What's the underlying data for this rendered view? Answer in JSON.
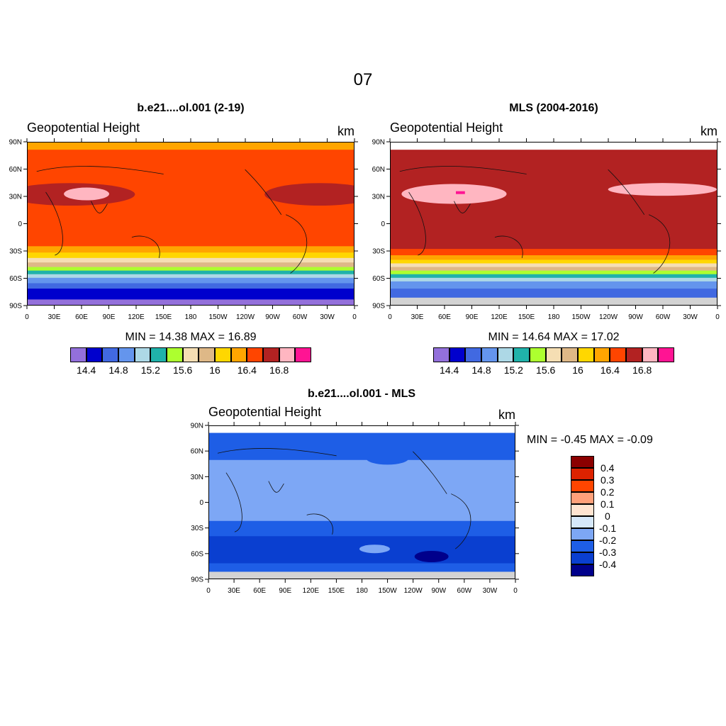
{
  "page": {
    "title": "07"
  },
  "panels": [
    {
      "title": "b.e21....ol.001 (2-19)",
      "variable": "Geopotential Height",
      "units": "km",
      "min_max": "MIN =  14.38  MAX =  16.89",
      "zonal_bands": [
        {
          "lat_top": 90,
          "lat_bottom": 82,
          "color": "#ffa500"
        },
        {
          "lat_top": 82,
          "lat_bottom": 30,
          "color": "#ff4500"
        },
        {
          "lat_top": 30,
          "lat_bottom": -25,
          "color": "#ff4500"
        },
        {
          "lat_top": -25,
          "lat_bottom": -32,
          "color": "#ffa500"
        },
        {
          "lat_top": -32,
          "lat_bottom": -38,
          "color": "#ffd700"
        },
        {
          "lat_top": -38,
          "lat_bottom": -43,
          "color": "#f5deb3"
        },
        {
          "lat_top": -43,
          "lat_bottom": -48,
          "color": "#deb887"
        },
        {
          "lat_top": -48,
          "lat_bottom": -52,
          "color": "#adff2f"
        },
        {
          "lat_top": -52,
          "lat_bottom": -56,
          "color": "#20b2aa"
        },
        {
          "lat_top": -56,
          "lat_bottom": -60,
          "color": "#add8e6"
        },
        {
          "lat_top": -60,
          "lat_bottom": -66,
          "color": "#6495ed"
        },
        {
          "lat_top": -66,
          "lat_bottom": -72,
          "color": "#4169e1"
        },
        {
          "lat_top": -72,
          "lat_bottom": -84,
          "color": "#0000cd"
        },
        {
          "lat_top": -84,
          "lat_bottom": -90,
          "color": "#9370db"
        }
      ]
    },
    {
      "title": "MLS (2004-2016)",
      "variable": "Geopotential Height",
      "units": "km",
      "min_max": "MIN =  14.64  MAX =  17.02",
      "zonal_bands": [
        {
          "lat_top": 90,
          "lat_bottom": 82,
          "color": "#ffffff"
        },
        {
          "lat_top": 82,
          "lat_bottom": -28,
          "color": "#b22222"
        },
        {
          "lat_top": -28,
          "lat_bottom": -35,
          "color": "#ff4500"
        },
        {
          "lat_top": -35,
          "lat_bottom": -40,
          "color": "#ffa500"
        },
        {
          "lat_top": -40,
          "lat_bottom": -44,
          "color": "#ffd700"
        },
        {
          "lat_top": -44,
          "lat_bottom": -48,
          "color": "#f5deb3"
        },
        {
          "lat_top": -48,
          "lat_bottom": -52,
          "color": "#deb887"
        },
        {
          "lat_top": -52,
          "lat_bottom": -56,
          "color": "#adff2f"
        },
        {
          "lat_top": -56,
          "lat_bottom": -60,
          "color": "#20b2aa"
        },
        {
          "lat_top": -60,
          "lat_bottom": -64,
          "color": "#add8e6"
        },
        {
          "lat_top": -64,
          "lat_bottom": -72,
          "color": "#6495ed"
        },
        {
          "lat_top": -72,
          "lat_bottom": -82,
          "color": "#4169e1"
        },
        {
          "lat_top": -82,
          "lat_bottom": -90,
          "color": "#d3d3d3"
        }
      ]
    },
    {
      "title": "b.e21....ol.001 - MLS",
      "variable": "Geopotential Height",
      "units": "km",
      "min_max": "MIN =  -0.45  MAX =  -0.09",
      "zonal_bands": [
        {
          "lat_top": 90,
          "lat_bottom": 82,
          "color": "#ffffff"
        },
        {
          "lat_top": 82,
          "lat_bottom": 50,
          "color": "#1e5ee6"
        },
        {
          "lat_top": 50,
          "lat_bottom": -22,
          "color": "#7da7f5"
        },
        {
          "lat_top": -22,
          "lat_bottom": -40,
          "color": "#1e5ee6"
        },
        {
          "lat_top": -40,
          "lat_bottom": -72,
          "color": "#0a3fd0"
        },
        {
          "lat_top": -72,
          "lat_bottom": -82,
          "color": "#1e5ee6"
        },
        {
          "lat_top": -82,
          "lat_bottom": -90,
          "color": "#d3d3d3"
        }
      ]
    }
  ],
  "axes": {
    "lat_ticks": [
      "90N",
      "60N",
      "30N",
      "0",
      "30S",
      "60S",
      "90S"
    ],
    "lon_ticks": [
      "0",
      "30E",
      "60E",
      "90E",
      "120E",
      "150E",
      "180",
      "150W",
      "120W",
      "90W",
      "60W",
      "30W",
      "0"
    ]
  },
  "colorbar_abs": {
    "colors": [
      "#9370db",
      "#0000cd",
      "#4169e1",
      "#6495ed",
      "#add8e6",
      "#20b2aa",
      "#adff2f",
      "#f5deb3",
      "#deb887",
      "#ffd700",
      "#ffa500",
      "#ff4500",
      "#b22222",
      "#ffb6c1",
      "#ff1493"
    ],
    "labels": [
      "14.4",
      "14.8",
      "15.2",
      "15.6",
      "16",
      "16.4",
      "16.8"
    ]
  },
  "colorbar_diff": {
    "colors": [
      "#8b0000",
      "#dd2200",
      "#ff4500",
      "#ffa07a",
      "#ffe4d1",
      "#d6e8fa",
      "#7da7f5",
      "#1e5ee6",
      "#0a3fd0",
      "#00008b"
    ],
    "labels": [
      "0.4",
      "0.3",
      "0.2",
      "0.1",
      "0",
      "-0.1",
      "-0.2",
      "-0.3",
      "-0.4"
    ]
  }
}
